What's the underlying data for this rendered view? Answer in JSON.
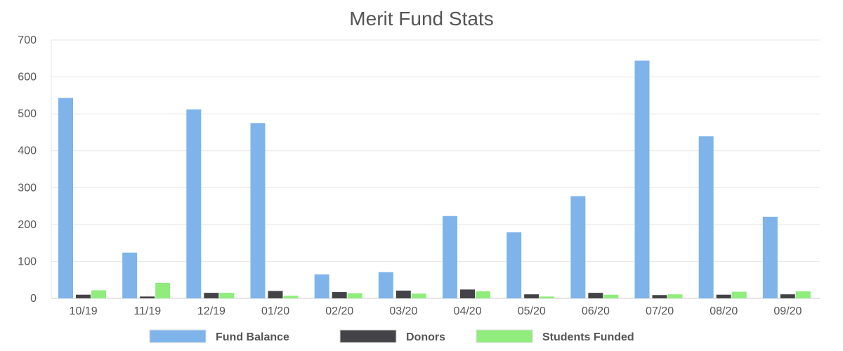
{
  "colors": {
    "fund_balance": "#7eb4ea",
    "donors": "#434348",
    "students_funded": "#90ed7d",
    "grid": "#e6e6e6",
    "text": "#555555",
    "axis": "#cccccc"
  },
  "chart_data": {
    "type": "bar",
    "title": "Merit Fund Stats",
    "xlabel": "",
    "ylabel": "",
    "ylim": [
      0,
      700
    ],
    "yticks": [
      0,
      100,
      200,
      300,
      400,
      500,
      600,
      700
    ],
    "grid": true,
    "legend_position": "bottom",
    "categories": [
      "10/19",
      "11/19",
      "12/19",
      "01/20",
      "02/20",
      "03/20",
      "04/20",
      "05/20",
      "06/20",
      "07/20",
      "08/20",
      "09/20"
    ],
    "series": [
      {
        "name": "Fund Balance",
        "values": [
          543,
          124,
          512,
          475,
          65,
          71,
          223,
          179,
          277,
          644,
          439,
          221
        ]
      },
      {
        "name": "Donors",
        "values": [
          10,
          5,
          15,
          20,
          17,
          21,
          24,
          11,
          15,
          9,
          10,
          11
        ]
      },
      {
        "name": "Students Funded",
        "values": [
          22,
          42,
          15,
          7,
          14,
          13,
          19,
          5,
          10,
          11,
          18,
          19
        ]
      }
    ]
  }
}
